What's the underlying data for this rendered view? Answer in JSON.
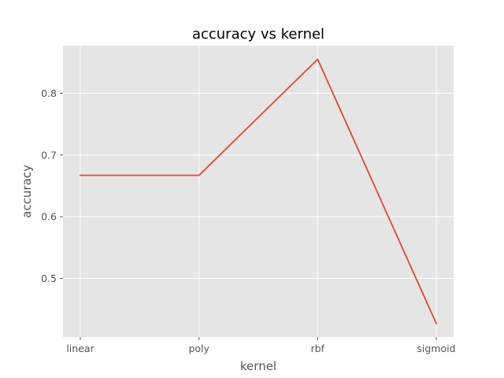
{
  "chart_data": {
    "type": "line",
    "title": "accuracy vs kernel",
    "xlabel": "kernel",
    "ylabel": "accuracy",
    "categories": [
      "linear",
      "poly",
      "rbf",
      "sigmoid"
    ],
    "series": [
      {
        "values": [
          0.667,
          0.667,
          0.855,
          0.427
        ],
        "color": "#E24A33"
      }
    ],
    "ylim": [
      0.405,
      0.877
    ],
    "yticks": [
      0.5,
      0.6,
      0.7,
      0.8
    ],
    "ytick_labels": [
      "0.5",
      "0.6",
      "0.7",
      "0.8"
    ],
    "grid": true,
    "style": {
      "plot_background": "#E5E5E5",
      "grid_color": "#FFFFFF",
      "tick_color": "#555555"
    }
  }
}
